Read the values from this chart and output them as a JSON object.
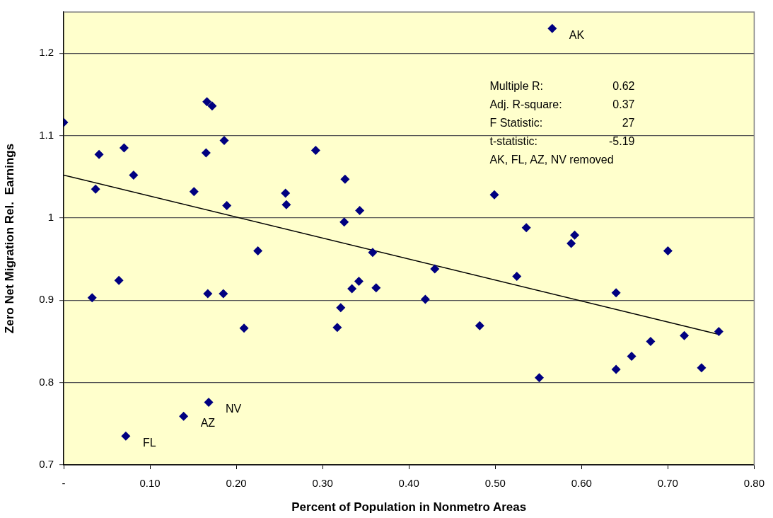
{
  "chart_data": {
    "type": "scatter",
    "xlabel": "Percent of Population in Nonmetro Areas",
    "ylabel": "Zero Net Migration Rel.  Earnings",
    "xlim": [
      0,
      0.8
    ],
    "xticks": [
      {
        "value": 0,
        "label": "-"
      },
      {
        "value": 0.1,
        "label": "0.10"
      },
      {
        "value": 0.2,
        "label": "0.20"
      },
      {
        "value": 0.3,
        "label": "0.30"
      },
      {
        "value": 0.4,
        "label": "0.40"
      },
      {
        "value": 0.5,
        "label": "0.50"
      },
      {
        "value": 0.6,
        "label": "0.60"
      },
      {
        "value": 0.7,
        "label": "0.70"
      },
      {
        "value": 0.8,
        "label": "0.80"
      }
    ],
    "ylim": [
      0.7,
      1.25
    ],
    "yticks": [
      0.7,
      0.8,
      0.9,
      1,
      1.1,
      1.2
    ],
    "grid": "y",
    "legend": false,
    "series": [
      {
        "type": "scatter",
        "color": "#000080",
        "marker": "diamond",
        "x": [
          0,
          0.033,
          0.037,
          0.041,
          0.064,
          0.07,
          0.072,
          0.081,
          0.139,
          0.151,
          0.166,
          0.165,
          0.167,
          0.168,
          0.172,
          0.186,
          0.185,
          0.189,
          0.209,
          0.225,
          0.257,
          0.258,
          0.292,
          0.317,
          0.321,
          0.325,
          0.326,
          0.334,
          0.342,
          0.343,
          0.358,
          0.362,
          0.419,
          0.43,
          0.482,
          0.499,
          0.525,
          0.536,
          0.551,
          0.566,
          0.588,
          0.592,
          0.64,
          0.64,
          0.658,
          0.68,
          0.7,
          0.719,
          0.739,
          0.759
        ],
        "values": [
          1.116,
          0.903,
          1.035,
          1.077,
          0.924,
          1.085,
          0.735,
          1.052,
          0.759,
          1.032,
          1.141,
          1.079,
          0.908,
          0.776,
          1.136,
          1.094,
          0.908,
          1.015,
          0.866,
          0.96,
          1.03,
          1.016,
          1.082,
          0.867,
          0.891,
          0.995,
          1.047,
          0.914,
          0.923,
          1.009,
          0.958,
          0.915,
          0.901,
          0.938,
          0.869,
          1.028,
          0.929,
          0.988,
          0.806,
          1.23,
          0.969,
          0.979,
          0.909,
          0.816,
          0.832,
          0.85,
          0.96,
          0.857,
          0.818,
          0.862
        ]
      },
      {
        "type": "line",
        "color": "#000000",
        "marker": "none",
        "line_style": "solid",
        "x": [
          0,
          0.757
        ],
        "values": [
          1.052,
          0.859
        ]
      }
    ],
    "annotations": [
      {
        "text": "AK",
        "x": 0.566,
        "y": 1.23
      },
      {
        "text": "FL",
        "x": 0.072,
        "y": 0.735
      },
      {
        "text": "AZ",
        "x": 0.139,
        "y": 0.759
      },
      {
        "text": "NV",
        "x": 0.168,
        "y": 0.776
      },
      "Multiple R:\t0.62",
      "Adj. R-square:\t0.37",
      "F Statistic:\t27",
      "t-statistic:\t-5.19",
      "AK, FL, AZ, NV removed"
    ]
  }
}
